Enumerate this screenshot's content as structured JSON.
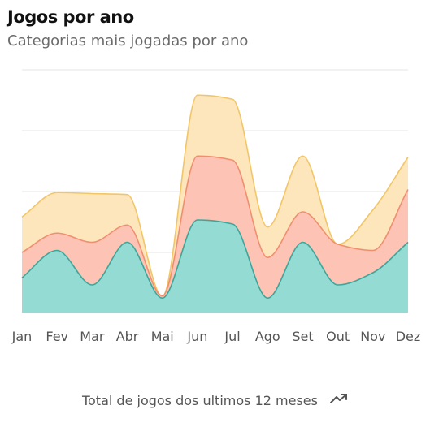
{
  "card": {
    "title": "Jogos por ano",
    "subtitle": "Categorias mais jogadas por ano",
    "footer": "Total de jogos dos ultimos 12 meses",
    "footer_icon": "trending-up-icon"
  },
  "chart_data": {
    "type": "area",
    "stacked": true,
    "title": "Jogos por ano",
    "subtitle": "Categorias mais jogadas por ano",
    "categories": [
      "Jan",
      "Fev",
      "Mar",
      "Abr",
      "Mai",
      "Jun",
      "Jul",
      "Ago",
      "Set",
      "Out",
      "Nov",
      "Dez"
    ],
    "series": [
      {
        "color": "#94dbd3",
        "stroke": "#3ca69b",
        "values": [
          35,
          62,
          28,
          70,
          15,
          92,
          88,
          15,
          70,
          28,
          40,
          70
        ]
      },
      {
        "color": "#fdc3b5",
        "stroke": "#f08f70",
        "values": [
          25,
          17,
          42,
          17,
          2,
          63,
          63,
          40,
          30,
          40,
          22,
          52
        ]
      },
      {
        "color": "#fde5bc",
        "stroke": "#f2c666",
        "values": [
          35,
          40,
          48,
          30,
          0,
          60,
          60,
          30,
          55,
          0,
          40,
          32
        ]
      }
    ],
    "ylim": [
      0,
      240
    ],
    "grid": true,
    "legend": "none"
  }
}
